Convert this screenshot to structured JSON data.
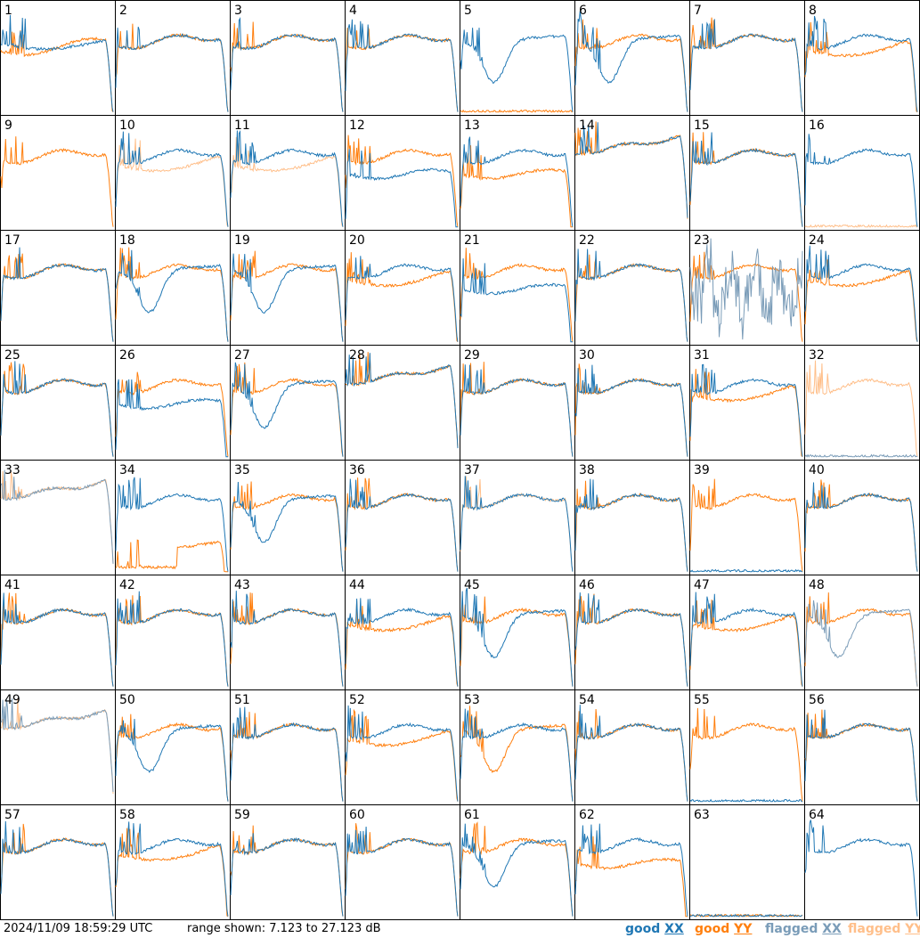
{
  "chart_data": {
    "type": "line",
    "title": "",
    "footer_timestamp": "2024/11/09 18:59:29 UTC",
    "footer_range": "range shown: 7.123 to 27.123 dB",
    "ylim": [
      7.123,
      27.123
    ],
    "grid": {
      "rows": 8,
      "cols": 8
    },
    "legend": [
      {
        "label_prefix": "good",
        "label_pol": "XX",
        "color": "#1f77b4"
      },
      {
        "label_prefix": "good",
        "label_pol": "YY",
        "color": "#ff7f0e"
      },
      {
        "label_prefix": "flagged",
        "label_pol": "XX",
        "color": "#7a9cb8"
      },
      {
        "label_prefix": "flagged",
        "label_pol": "YY",
        "color": "#ffbf8a"
      }
    ],
    "colors": {
      "good_xx": "#1f77b4",
      "good_yy": "#ff7f0e",
      "flagged_xx": "#7a9cb8",
      "flagged_yy": "#ffbf8a"
    },
    "tiles": [
      {
        "id": "1",
        "x": "good",
        "y": "good",
        "xs": "edge",
        "ys": "broadband"
      },
      {
        "id": "2",
        "x": "good",
        "y": "good",
        "xs": "flat",
        "ys": "flat"
      },
      {
        "id": "3",
        "x": "good",
        "y": "good",
        "xs": "flat",
        "ys": "flat"
      },
      {
        "id": "4",
        "x": "good",
        "y": "good",
        "xs": "flat",
        "ys": "flat"
      },
      {
        "id": "5",
        "x": "good",
        "y": "good",
        "xs": "dip",
        "ys": "dead"
      },
      {
        "id": "6",
        "x": "good",
        "y": "good",
        "xs": "dip",
        "ys": "flat"
      },
      {
        "id": "7",
        "x": "good",
        "y": "good",
        "xs": "flat",
        "ys": "flat"
      },
      {
        "id": "8",
        "x": "good",
        "y": "good",
        "xs": "flat",
        "ys": "sag"
      },
      {
        "id": "9",
        "x": "flagged",
        "y": "good",
        "xs": "spiky",
        "ys": "flat"
      },
      {
        "id": "10",
        "x": "good",
        "y": "flagged",
        "xs": "flat",
        "ys": "sag"
      },
      {
        "id": "11",
        "x": "good",
        "y": "flagged",
        "xs": "flat",
        "ys": "sag"
      },
      {
        "id": "12",
        "x": "good",
        "y": "good",
        "xs": "low",
        "ys": "flat"
      },
      {
        "id": "13",
        "x": "good",
        "y": "good",
        "xs": "flat",
        "ys": "low"
      },
      {
        "id": "14",
        "x": "good",
        "y": "good",
        "xs": "rise",
        "ys": "rise"
      },
      {
        "id": "15",
        "x": "good",
        "y": "good",
        "xs": "flat",
        "ys": "flat"
      },
      {
        "id": "16",
        "x": "good",
        "y": "flagged",
        "xs": "flat",
        "ys": "dead"
      },
      {
        "id": "17",
        "x": "good",
        "y": "good",
        "xs": "flat",
        "ys": "flat"
      },
      {
        "id": "18",
        "x": "good",
        "y": "good",
        "xs": "dip",
        "ys": "flat"
      },
      {
        "id": "19",
        "x": "good",
        "y": "good",
        "xs": "dip",
        "ys": "flat"
      },
      {
        "id": "20",
        "x": "good",
        "y": "good",
        "xs": "flat",
        "ys": "sag"
      },
      {
        "id": "21",
        "x": "good",
        "y": "good",
        "xs": "low",
        "ys": "flat"
      },
      {
        "id": "22",
        "x": "good",
        "y": "good",
        "xs": "flat",
        "ys": "flat"
      },
      {
        "id": "23",
        "x": "flagged",
        "y": "good",
        "xs": "noisy",
        "ys": "flat"
      },
      {
        "id": "24",
        "x": "good",
        "y": "good",
        "xs": "flat",
        "ys": "sag"
      },
      {
        "id": "25",
        "x": "good",
        "y": "good",
        "xs": "flat",
        "ys": "flat"
      },
      {
        "id": "26",
        "x": "good",
        "y": "good",
        "xs": "low",
        "ys": "flat"
      },
      {
        "id": "27",
        "x": "good",
        "y": "good",
        "xs": "dip",
        "ys": "flat"
      },
      {
        "id": "28",
        "x": "good",
        "y": "good",
        "xs": "rise",
        "ys": "rise"
      },
      {
        "id": "29",
        "x": "good",
        "y": "good",
        "xs": "flat",
        "ys": "flat"
      },
      {
        "id": "30",
        "x": "good",
        "y": "good",
        "xs": "flat",
        "ys": "flat"
      },
      {
        "id": "31",
        "x": "good",
        "y": "good",
        "xs": "flat",
        "ys": "sag"
      },
      {
        "id": "32",
        "x": "flagged",
        "y": "flagged",
        "xs": "dead",
        "ys": "flat"
      },
      {
        "id": "33",
        "x": "flagged",
        "y": "flagged",
        "xs": "rise",
        "ys": "rise"
      },
      {
        "id": "34",
        "x": "good",
        "y": "good",
        "xs": "flat",
        "ys": "lowyy"
      },
      {
        "id": "35",
        "x": "good",
        "y": "good",
        "xs": "dip",
        "ys": "flat"
      },
      {
        "id": "36",
        "x": "good",
        "y": "good",
        "xs": "flat",
        "ys": "flat"
      },
      {
        "id": "37",
        "x": "good",
        "y": "flagged",
        "xs": "flat",
        "ys": "flat"
      },
      {
        "id": "38",
        "x": "good",
        "y": "good",
        "xs": "flat",
        "ys": "flat"
      },
      {
        "id": "39",
        "x": "good",
        "y": "good",
        "xs": "dead",
        "ys": "flat"
      },
      {
        "id": "40",
        "x": "good",
        "y": "good",
        "xs": "flat",
        "ys": "flat"
      },
      {
        "id": "41",
        "x": "good",
        "y": "good",
        "xs": "flat",
        "ys": "flat"
      },
      {
        "id": "42",
        "x": "good",
        "y": "good",
        "xs": "flat",
        "ys": "flat"
      },
      {
        "id": "43",
        "x": "good",
        "y": "good",
        "xs": "flat",
        "ys": "flat"
      },
      {
        "id": "44",
        "x": "good",
        "y": "good",
        "xs": "flat",
        "ys": "sag"
      },
      {
        "id": "45",
        "x": "good",
        "y": "good",
        "xs": "dip",
        "ys": "flat"
      },
      {
        "id": "46",
        "x": "good",
        "y": "good",
        "xs": "flat",
        "ys": "flat"
      },
      {
        "id": "47",
        "x": "good",
        "y": "good",
        "xs": "flat",
        "ys": "sag"
      },
      {
        "id": "48",
        "x": "flagged",
        "y": "good",
        "xs": "dip",
        "ys": "flat"
      },
      {
        "id": "49",
        "x": "flagged",
        "y": "flagged",
        "xs": "rise",
        "ys": "rise"
      },
      {
        "id": "50",
        "x": "good",
        "y": "good",
        "xs": "dip",
        "ys": "flat"
      },
      {
        "id": "51",
        "x": "good",
        "y": "good",
        "xs": "flat",
        "ys": "flat"
      },
      {
        "id": "52",
        "x": "good",
        "y": "good",
        "xs": "flat",
        "ys": "sag"
      },
      {
        "id": "53",
        "x": "good",
        "y": "good",
        "xs": "flat",
        "ys": "dip"
      },
      {
        "id": "54",
        "x": "good",
        "y": "good",
        "xs": "flat",
        "ys": "flat"
      },
      {
        "id": "55",
        "x": "good",
        "y": "good",
        "xs": "dead",
        "ys": "flat"
      },
      {
        "id": "56",
        "x": "good",
        "y": "good",
        "xs": "flat",
        "ys": "flat"
      },
      {
        "id": "57",
        "x": "good",
        "y": "good",
        "xs": "flat",
        "ys": "flat"
      },
      {
        "id": "58",
        "x": "good",
        "y": "good",
        "xs": "flat",
        "ys": "sag"
      },
      {
        "id": "59",
        "x": "good",
        "y": "good",
        "xs": "flat",
        "ys": "flat"
      },
      {
        "id": "60",
        "x": "good",
        "y": "good",
        "xs": "flat",
        "ys": "flat"
      },
      {
        "id": "61",
        "x": "good",
        "y": "good",
        "xs": "dip",
        "ys": "flat"
      },
      {
        "id": "62",
        "x": "good",
        "y": "good",
        "xs": "flat",
        "ys": "low"
      },
      {
        "id": "63",
        "x": "good",
        "y": "good",
        "xs": "dead",
        "ys": "dead"
      },
      {
        "id": "64",
        "x": "good",
        "y": "good",
        "xs": "flat",
        "ys": "none"
      }
    ]
  }
}
